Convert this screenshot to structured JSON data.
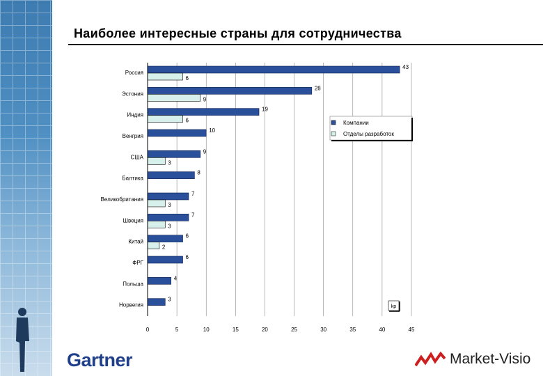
{
  "title": "Наиболее интересные страны для сотрудничества",
  "footer": {
    "left_logo": "Gartner",
    "right_logo": "Market-Visio"
  },
  "chart_data": {
    "type": "bar",
    "orientation": "horizontal",
    "title": "Наиболее интересные страны для сотрудничества",
    "categories": [
      "Россия",
      "Эстония",
      "Индия",
      "Венгрия",
      "США",
      "Балтика",
      "Великобритания",
      "Швеция",
      "Китай",
      "ФРГ",
      "Польша",
      "Норвегия"
    ],
    "series": [
      {
        "name": "Компании",
        "color": "#2a4f9b",
        "values": [
          43,
          28,
          19,
          10,
          9,
          8,
          7,
          7,
          6,
          6,
          4,
          3
        ]
      },
      {
        "name": "Отделы разработок",
        "color": "#d8f0ec",
        "values": [
          6,
          9,
          6,
          null,
          3,
          null,
          3,
          3,
          2,
          null,
          null,
          null
        ]
      }
    ],
    "xlim": [
      0,
      45
    ],
    "xticks": [
      0,
      5,
      10,
      15,
      20,
      25,
      30,
      35,
      40,
      45
    ],
    "legend_position": "right",
    "unit_label": "kp",
    "grid": true
  }
}
